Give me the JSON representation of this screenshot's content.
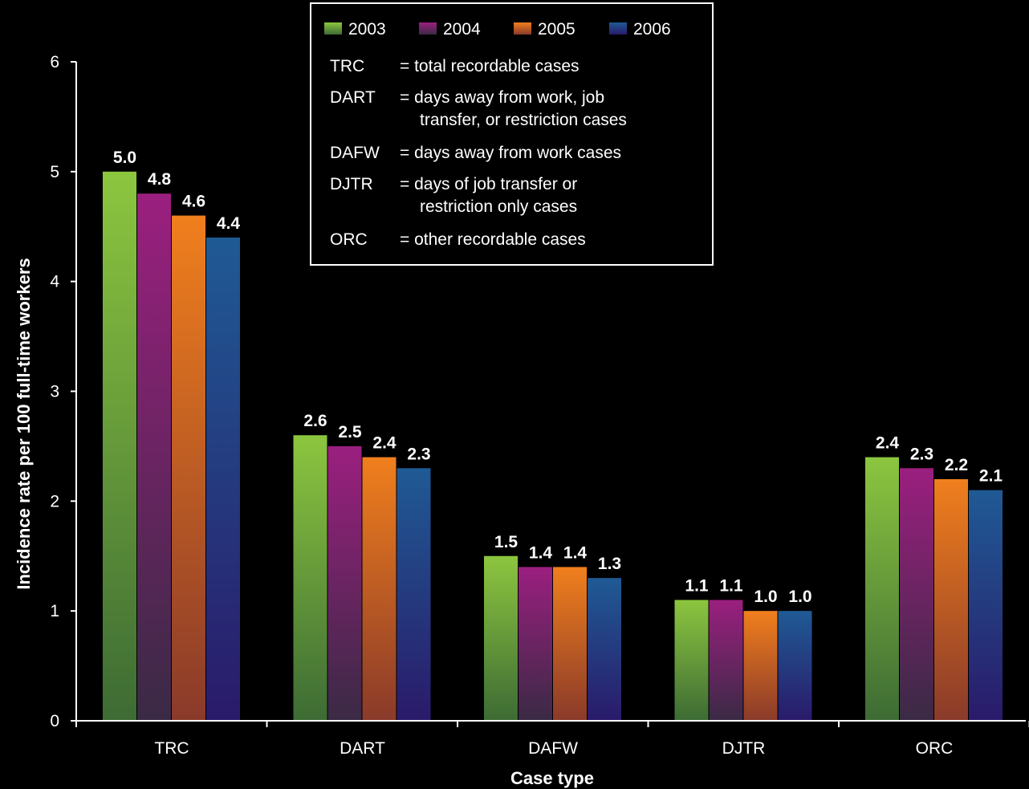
{
  "chart_data": {
    "type": "bar",
    "xlabel": "Case type",
    "ylabel": "Incidence rate per 100 full-time workers",
    "ylim": [
      0,
      6
    ],
    "yticks": [
      "0",
      "1",
      "2",
      "3",
      "4",
      "5",
      "6"
    ],
    "categories": [
      "TRC",
      "DART",
      "DAFW",
      "DJTR",
      "ORC"
    ],
    "series": [
      {
        "name": "2003",
        "values": [
          5.0,
          2.6,
          1.5,
          1.1,
          2.4
        ],
        "labels": [
          "5.0",
          "2.6",
          "1.5",
          "1.1",
          "2.4"
        ],
        "color_top": "#8cc63f",
        "color_bottom": "#3d6b34"
      },
      {
        "name": "2004",
        "values": [
          4.8,
          2.5,
          1.4,
          1.1,
          2.3
        ],
        "labels": [
          "4.8",
          "2.5",
          "1.4",
          "1.1",
          "2.3"
        ],
        "color_top": "#9b1f7f",
        "color_bottom": "#3a2a45"
      },
      {
        "name": "2005",
        "values": [
          4.6,
          2.4,
          1.4,
          1.0,
          2.2
        ],
        "labels": [
          "4.6",
          "2.4",
          "1.4",
          "1.0",
          "2.2"
        ],
        "color_top": "#f07f1d",
        "color_bottom": "#8a3a2a"
      },
      {
        "name": "2006",
        "values": [
          4.4,
          2.3,
          1.3,
          1.0,
          2.1
        ],
        "labels": [
          "4.4",
          "2.3",
          "1.3",
          "1.0",
          "2.1"
        ],
        "color_top": "#1f5a94",
        "color_bottom": "#2a1a6a"
      }
    ],
    "legend_position": "top-center",
    "grid": false,
    "definitions": [
      {
        "abbr": "TRC",
        "lines": [
          "= total recordable cases"
        ]
      },
      {
        "abbr": "DART",
        "lines": [
          "= days away from work, job",
          "transfer, or restriction cases"
        ]
      },
      {
        "abbr": "DAFW",
        "lines": [
          "= days away from work cases"
        ]
      },
      {
        "abbr": "DJTR",
        "lines": [
          "= days of job transfer or",
          "restriction only cases"
        ]
      },
      {
        "abbr": "ORC",
        "lines": [
          "= other recordable cases"
        ]
      }
    ]
  }
}
